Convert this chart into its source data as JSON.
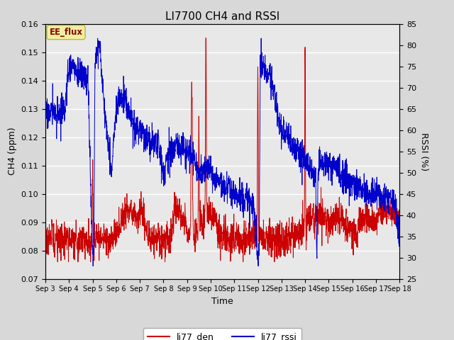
{
  "title": "LI7700 CH4 and RSSI",
  "xlabel": "Time",
  "ylabel_left": "CH4 (ppm)",
  "ylabel_right": "RSSI (%)",
  "ylim_left": [
    0.07,
    0.16
  ],
  "ylim_right": [
    25,
    85
  ],
  "yticks_left": [
    0.07,
    0.08,
    0.09,
    0.1,
    0.11,
    0.12,
    0.13,
    0.14,
    0.15,
    0.16
  ],
  "yticks_right": [
    25,
    30,
    35,
    40,
    45,
    50,
    55,
    60,
    65,
    70,
    75,
    80,
    85
  ],
  "xtick_labels": [
    "Sep 3",
    "Sep 4",
    "Sep 5",
    "Sep 6",
    "Sep 7",
    "Sep 8",
    "Sep 9",
    "Sep 10",
    "Sep 11",
    "Sep 12",
    "Sep 13",
    "Sep 14",
    "Sep 15",
    "Sep 16",
    "Sep 17",
    "Sep 18"
  ],
  "legend_label_red": "li77_den",
  "legend_label_blue": "li77_rssi",
  "annotation_text": "EE_flux",
  "color_red": "#cc0000",
  "color_blue": "#0000cc",
  "background_color": "#d8d8d8",
  "plot_bg_color": "#e8e8e8",
  "grid_color": "#ffffff",
  "n_points": 2000
}
